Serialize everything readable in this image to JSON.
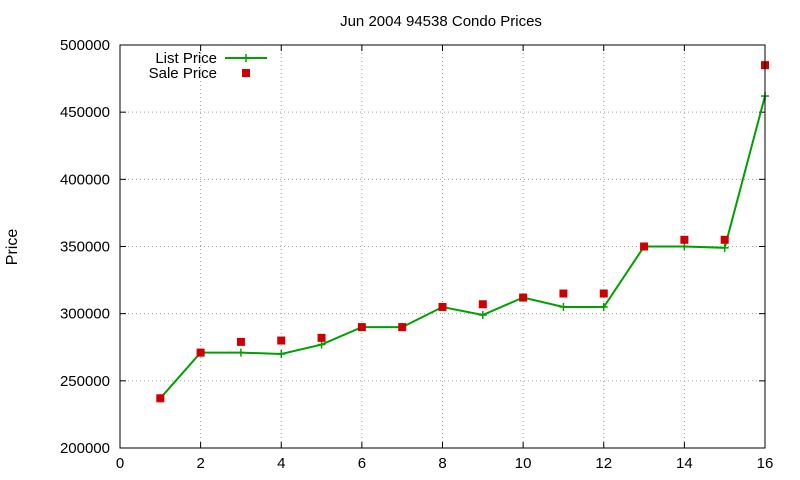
{
  "chart_data": {
    "type": "line",
    "title": "Jun 2004 94538 Condo Prices",
    "xlabel": "",
    "ylabel": "Price",
    "xlim": [
      0,
      16
    ],
    "ylim": [
      200000,
      500000
    ],
    "xticks": [
      0,
      2,
      4,
      6,
      8,
      10,
      12,
      14,
      16
    ],
    "xtick_labels": [
      "0",
      "2",
      "4",
      "6",
      "8",
      "10",
      "12",
      "14",
      "16"
    ],
    "yticks": [
      200000,
      250000,
      300000,
      350000,
      400000,
      450000,
      500000
    ],
    "ytick_labels": [
      "200000",
      "250000",
      "300000",
      "350000",
      "400000",
      "450000",
      "500000"
    ],
    "grid": true,
    "legend_position": "top-left",
    "series": [
      {
        "name": "List Price",
        "style": "line-plus",
        "color": "#00a000",
        "x": [
          1,
          2,
          3,
          4,
          5,
          6,
          7,
          8,
          9,
          10,
          11,
          12,
          13,
          14,
          15,
          16
        ],
        "y": [
          237000,
          271000,
          271000,
          270000,
          277000,
          290000,
          290000,
          305000,
          299000,
          312000,
          305000,
          305000,
          350000,
          350000,
          349000,
          462000
        ]
      },
      {
        "name": "Sale Price",
        "style": "square-points",
        "color": "#cc0000",
        "x": [
          1,
          2,
          3,
          4,
          5,
          6,
          7,
          8,
          9,
          10,
          11,
          12,
          13,
          14,
          15,
          16
        ],
        "y": [
          237000,
          271000,
          279000,
          280000,
          282000,
          290000,
          290000,
          305000,
          307000,
          312000,
          315000,
          315000,
          350000,
          355000,
          355000,
          485000
        ]
      }
    ]
  }
}
